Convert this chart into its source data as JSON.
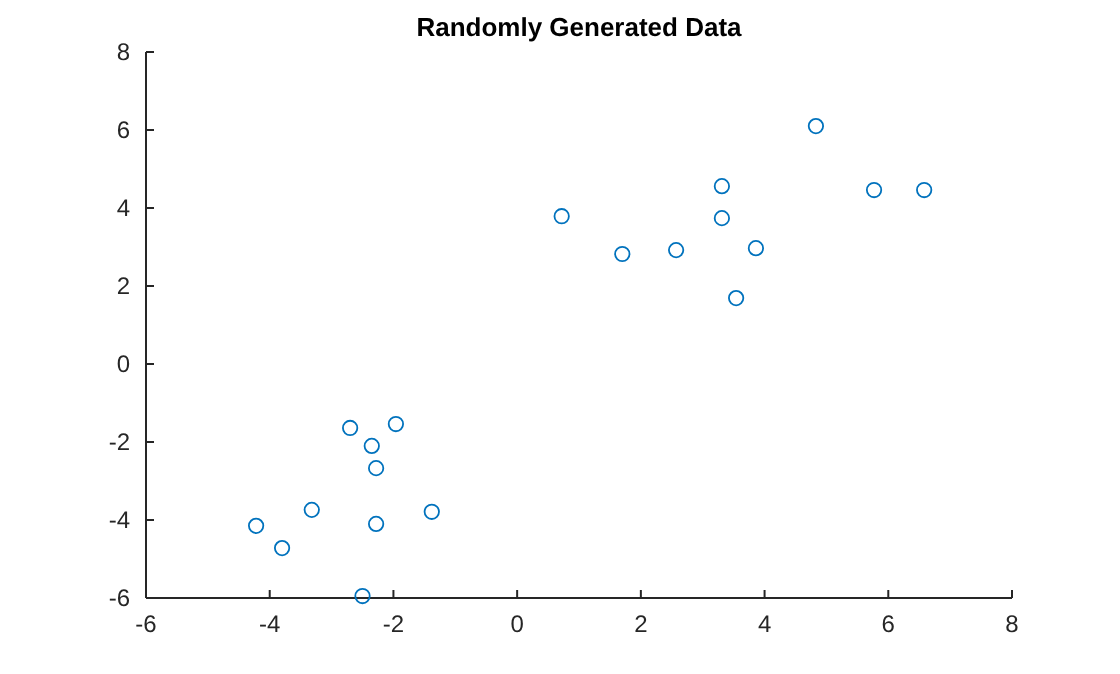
{
  "chart_data": {
    "type": "scatter",
    "title": "Randomly Generated Data",
    "marker": "circle",
    "grid": false,
    "x": [
      0.72,
      1.7,
      2.57,
      3.31,
      3.31,
      3.54,
      3.86,
      4.83,
      5.77,
      6.58,
      -2.7,
      -2.35,
      -1.96,
      -2.28,
      -3.32,
      -1.38,
      -2.28,
      -4.22,
      -3.8,
      -2.5
    ],
    "series": [
      {
        "color": "#0072bd",
        "values": [
          3.79,
          2.82,
          2.92,
          4.56,
          3.74,
          1.69,
          2.97,
          6.1,
          4.46,
          4.46,
          -1.64,
          -2.1,
          -1.54,
          -2.67,
          -3.74,
          -3.79,
          -4.1,
          -4.15,
          -4.72,
          -5.95
        ]
      }
    ],
    "xlim": [
      -6,
      8
    ],
    "xticks": [
      -6,
      -4,
      -2,
      0,
      2,
      4,
      6,
      8
    ],
    "ylim": [
      -6,
      8
    ],
    "yticks": [
      -6,
      -4,
      -2,
      0,
      2,
      4,
      6,
      8
    ]
  }
}
